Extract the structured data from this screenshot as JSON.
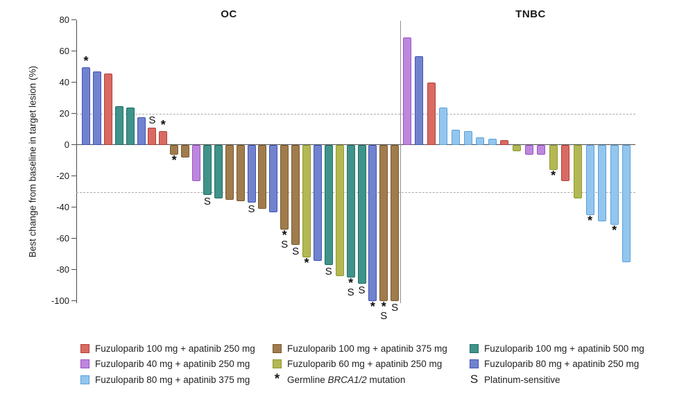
{
  "chart_data": {
    "type": "bar",
    "title": "",
    "ylabel": "Best change from baseline in target lesion (%)",
    "ylim": [
      -100,
      80
    ],
    "yticks": [
      80,
      60,
      40,
      20,
      0,
      -20,
      -40,
      -60,
      -80,
      -100
    ],
    "reference_lines": [
      20,
      -30
    ],
    "grid": "off",
    "legend_position": "bottom",
    "panels": [
      {
        "title": "OC",
        "bars": [
          {
            "value": 50,
            "color": "royal",
            "flags": "*"
          },
          {
            "value": 47,
            "color": "royal",
            "flags": ""
          },
          {
            "value": 46,
            "color": "red",
            "flags": ""
          },
          {
            "value": 25,
            "color": "teal",
            "flags": ""
          },
          {
            "value": 24,
            "color": "teal",
            "flags": ""
          },
          {
            "value": 18,
            "color": "royal",
            "flags": ""
          },
          {
            "value": 11,
            "color": "red",
            "flags": "S"
          },
          {
            "value": 9,
            "color": "red",
            "flags": "*"
          },
          {
            "value": -6,
            "color": "brown",
            "flags": "*"
          },
          {
            "value": -8,
            "color": "brown",
            "flags": ""
          },
          {
            "value": -23,
            "color": "purple",
            "flags": ""
          },
          {
            "value": -32,
            "color": "teal",
            "flags": "S"
          },
          {
            "value": -34,
            "color": "teal",
            "flags": ""
          },
          {
            "value": -35,
            "color": "brown",
            "flags": ""
          },
          {
            "value": -36,
            "color": "brown",
            "flags": ""
          },
          {
            "value": -37,
            "color": "royal",
            "flags": "S"
          },
          {
            "value": -41,
            "color": "brown",
            "flags": ""
          },
          {
            "value": -43,
            "color": "royal",
            "flags": ""
          },
          {
            "value": -54,
            "color": "brown",
            "flags": "*S"
          },
          {
            "value": -64,
            "color": "brown",
            "flags": "S"
          },
          {
            "value": -72,
            "color": "olive",
            "flags": "*"
          },
          {
            "value": -74,
            "color": "royal",
            "flags": ""
          },
          {
            "value": -77,
            "color": "teal",
            "flags": "S"
          },
          {
            "value": -84,
            "color": "olive",
            "flags": ""
          },
          {
            "value": -85,
            "color": "teal",
            "flags": "*S"
          },
          {
            "value": -89,
            "color": "teal",
            "flags": "S"
          },
          {
            "value": -100,
            "color": "royal",
            "flags": "*"
          },
          {
            "value": -100,
            "color": "brown",
            "flags": "*S"
          },
          {
            "value": -100,
            "color": "brown",
            "flags": "S"
          }
        ]
      },
      {
        "title": "TNBC",
        "bars": [
          {
            "value": 69,
            "color": "purple",
            "flags": ""
          },
          {
            "value": 57,
            "color": "royal",
            "flags": ""
          },
          {
            "value": 40,
            "color": "red",
            "flags": ""
          },
          {
            "value": 24,
            "color": "sky",
            "flags": ""
          },
          {
            "value": 10,
            "color": "sky",
            "flags": ""
          },
          {
            "value": 9,
            "color": "sky",
            "flags": ""
          },
          {
            "value": 5,
            "color": "sky",
            "flags": ""
          },
          {
            "value": 4,
            "color": "sky",
            "flags": ""
          },
          {
            "value": 3,
            "color": "red",
            "flags": ""
          },
          {
            "value": -4,
            "color": "olive",
            "flags": ""
          },
          {
            "value": -6,
            "color": "purple",
            "flags": ""
          },
          {
            "value": -6,
            "color": "purple",
            "flags": ""
          },
          {
            "value": -16,
            "color": "olive",
            "flags": "*"
          },
          {
            "value": -23,
            "color": "red",
            "flags": ""
          },
          {
            "value": -34,
            "color": "olive",
            "flags": ""
          },
          {
            "value": -45,
            "color": "sky",
            "flags": "*"
          },
          {
            "value": -49,
            "color": "sky",
            "flags": ""
          },
          {
            "value": -51,
            "color": "sky",
            "flags": "*"
          },
          {
            "value": -75,
            "color": "sky",
            "flags": ""
          }
        ]
      }
    ]
  },
  "colors": {
    "red": {
      "fill": "#D96A62",
      "border": "#B13F3B"
    },
    "brown": {
      "fill": "#A07C4D",
      "border": "#7A582E"
    },
    "teal": {
      "fill": "#40938A",
      "border": "#1F6F66"
    },
    "purple": {
      "fill": "#BD87DE",
      "border": "#9B50C4"
    },
    "olive": {
      "fill": "#B3B854",
      "border": "#8F9A2B"
    },
    "royal": {
      "fill": "#7183CE",
      "border": "#4053B4"
    },
    "sky": {
      "fill": "#93C6EE",
      "border": "#5C9FD8"
    }
  },
  "legend": {
    "columns": [
      [
        {
          "key": "red",
          "label": "Fuzuloparib 100 mg + apatinib 250 mg"
        },
        {
          "key": "purple",
          "label": "Fuzuloparib 40 mg + apatinib 250 mg"
        },
        {
          "key": "sky",
          "label": "Fuzuloparib 80 mg + apatinib 375 mg"
        }
      ],
      [
        {
          "key": "brown",
          "label": "Fuzuloparib 100 mg + apatinib 375 mg"
        },
        {
          "key": "olive",
          "label": "Fuzuloparib 60 mg + apatinib 250 mg"
        },
        {
          "symbol": "*",
          "prefix": "Germline ",
          "italic": "BRCA1/2",
          "suffix": " mutation"
        }
      ],
      [
        {
          "key": "teal",
          "label": "Fuzuloparib 100 mg + apatinib 500 mg"
        },
        {
          "key": "royal",
          "label": "Fuzuloparib 80 mg + apatinib 250 mg"
        },
        {
          "symbol": "S",
          "label": "Platinum-sensitive"
        }
      ]
    ]
  }
}
